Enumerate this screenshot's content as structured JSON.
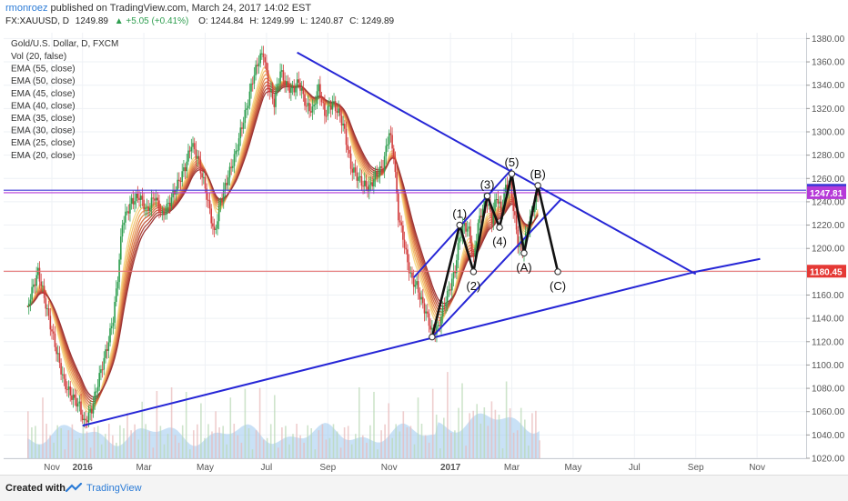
{
  "header": {
    "user": "rmonroez",
    "published_text": "published on TradingView.com, March 24, 2017 14:02 EST",
    "symbol": "FX:XAUUSD, D",
    "last": "1249.89",
    "change": "+5.05 (+0.41%)",
    "o": "O: 1244.84",
    "h": "H: 1249.99",
    "l": "L: 1240.87",
    "c": "C: 1249.89"
  },
  "legend": {
    "title": "Gold/U.S. Dollar, D, FXCM",
    "items": [
      "Vol (20, false)",
      "EMA (55, close)",
      "EMA (50, close)",
      "EMA (45, close)",
      "EMA (40, close)",
      "EMA (35, close)",
      "EMA (30, close)",
      "EMA (25, close)",
      "EMA (20, close)"
    ]
  },
  "price_tags": [
    {
      "label": "1249.89",
      "value": 1249.89,
      "color": "#3f3bd6"
    },
    {
      "label": "1247.81",
      "value": 1247.81,
      "color": "#b63ad8"
    },
    {
      "label": "1180.45",
      "value": 1180.45,
      "color": "#e53935"
    }
  ],
  "footer": {
    "created": "Created with",
    "brand": "TradingView"
  },
  "chart_data": {
    "type": "line",
    "title": "Gold/U.S. Dollar, D, FXCM",
    "y_range": [
      1020,
      1385
    ],
    "y_ticks": [
      1020,
      1040,
      1060,
      1080,
      1100,
      1120,
      1140,
      1160,
      1180,
      1200,
      1220,
      1240,
      1260,
      1280,
      1300,
      1320,
      1340,
      1360,
      1380
    ],
    "y_tick_labels": [
      "1020.00",
      "1040.00",
      "1060.00",
      "1080.00",
      "1100.00",
      "1120.00",
      "1140.00",
      "1160.00",
      "1180.00",
      "1200.00",
      "1220.00",
      "1240.00",
      "1260.00",
      "1280.00",
      "1300.00",
      "1320.00",
      "1340.00",
      "1360.00",
      "1380.00"
    ],
    "x_axis_labels": [
      {
        "label": "Nov",
        "month_index": 0
      },
      {
        "label": "2016",
        "month_index": 1
      },
      {
        "label": "Mar",
        "month_index": 3
      },
      {
        "label": "May",
        "month_index": 5
      },
      {
        "label": "Jul",
        "month_index": 7
      },
      {
        "label": "Sep",
        "month_index": 9
      },
      {
        "label": "Nov",
        "month_index": 11
      },
      {
        "label": "2017",
        "month_index": 13
      },
      {
        "label": "Mar",
        "month_index": 15
      },
      {
        "label": "May",
        "month_index": 17
      },
      {
        "label": "Jul",
        "month_index": 19
      },
      {
        "label": "Sep",
        "month_index": 21
      },
      {
        "label": "Nov",
        "month_index": 23
      }
    ],
    "price_series": {
      "name": "XAUUSD close",
      "points": [
        [
          -0.8,
          1150
        ],
        [
          -0.6,
          1168
        ],
        [
          -0.45,
          1180
        ],
        [
          -0.3,
          1164
        ],
        [
          -0.1,
          1140
        ],
        [
          0.15,
          1112
        ],
        [
          0.4,
          1085
        ],
        [
          0.6,
          1075
        ],
        [
          0.9,
          1065
        ],
        [
          1.05,
          1050
        ],
        [
          1.3,
          1062
        ],
        [
          1.55,
          1090
        ],
        [
          1.8,
          1115
        ],
        [
          2.0,
          1140
        ],
        [
          2.15,
          1175
        ],
        [
          2.3,
          1222
        ],
        [
          2.6,
          1240
        ],
        [
          2.85,
          1245
        ],
        [
          3.1,
          1232
        ],
        [
          3.35,
          1245
        ],
        [
          3.6,
          1228
        ],
        [
          3.85,
          1240
        ],
        [
          4.1,
          1255
        ],
        [
          4.35,
          1270
        ],
        [
          4.55,
          1290
        ],
        [
          4.75,
          1278
        ],
        [
          5.0,
          1252
        ],
        [
          5.15,
          1232
        ],
        [
          5.3,
          1212
        ],
        [
          5.5,
          1240
        ],
        [
          5.75,
          1262
        ],
        [
          6.0,
          1282
        ],
        [
          6.15,
          1300
        ],
        [
          6.35,
          1320
        ],
        [
          6.55,
          1345
        ],
        [
          6.75,
          1362
        ],
        [
          6.9,
          1368
        ],
        [
          7.05,
          1340
        ],
        [
          7.25,
          1325
        ],
        [
          7.45,
          1352
        ],
        [
          7.65,
          1340
        ],
        [
          7.85,
          1335
        ],
        [
          8.05,
          1343
        ],
        [
          8.3,
          1322
        ],
        [
          8.5,
          1318
        ],
        [
          8.7,
          1338
        ],
        [
          8.9,
          1315
        ],
        [
          9.15,
          1325
        ],
        [
          9.4,
          1314
        ],
        [
          9.55,
          1300
        ],
        [
          9.75,
          1270
        ],
        [
          9.95,
          1262
        ],
        [
          10.15,
          1255
        ],
        [
          10.35,
          1252
        ],
        [
          10.55,
          1262
        ],
        [
          10.8,
          1270
        ],
        [
          11.0,
          1300
        ],
        [
          11.15,
          1280
        ],
        [
          11.3,
          1228
        ],
        [
          11.45,
          1210
        ],
        [
          11.6,
          1188
        ],
        [
          11.75,
          1172
        ],
        [
          11.9,
          1168
        ],
        [
          12.05,
          1155
        ],
        [
          12.2,
          1145
        ],
        [
          12.4,
          1128
        ],
        [
          12.6,
          1132
        ],
        [
          12.8,
          1152
        ],
        [
          13.0,
          1168
        ],
        [
          13.15,
          1182
        ],
        [
          13.3,
          1210
        ],
        [
          13.45,
          1220
        ],
        [
          13.6,
          1215
        ],
        [
          13.75,
          1190
        ],
        [
          13.9,
          1220
        ],
        [
          14.05,
          1235
        ],
        [
          14.2,
          1240
        ],
        [
          14.35,
          1225
        ],
        [
          14.5,
          1245
        ],
        [
          14.65,
          1232
        ],
        [
          14.8,
          1252
        ],
        [
          14.95,
          1256
        ],
        [
          15.05,
          1235
        ],
        [
          15.2,
          1205
        ],
        [
          15.35,
          1198
        ],
        [
          15.5,
          1215
        ],
        [
          15.65,
          1230
        ],
        [
          15.8,
          1245
        ],
        [
          15.9,
          1249.89
        ]
      ]
    },
    "ema_series": [
      {
        "name": "EMA (20, close)",
        "color": "#f6d98a"
      },
      {
        "name": "EMA (25, close)",
        "color": "#f2c070"
      },
      {
        "name": "EMA (30, close)",
        "color": "#eda45e"
      },
      {
        "name": "EMA (35, close)",
        "color": "#e2884f"
      },
      {
        "name": "EMA (40, close)",
        "color": "#d47045"
      },
      {
        "name": "EMA (45, close)",
        "color": "#c45a3f"
      },
      {
        "name": "EMA (50, close)",
        "color": "#b2473a"
      },
      {
        "name": "EMA (55, close)",
        "color": "#9e3636"
      }
    ],
    "horizontal_lines": [
      {
        "value": 1249.89,
        "color": "#3f3bd6"
      },
      {
        "value": 1247.81,
        "color": "#b63ad8"
      },
      {
        "value": 1180.45,
        "color": "#e57373"
      }
    ],
    "trendlines": [
      {
        "from": [
          1.0,
          1048
        ],
        "to": [
          21.0,
          1180
        ]
      },
      {
        "from": [
          21.0,
          1180
        ],
        "to": [
          23.1,
          1191
        ]
      },
      {
        "from": [
          8.0,
          1368
        ],
        "to": [
          21.0,
          1178
        ]
      },
      {
        "from": [
          11.8,
          1175
        ],
        "to": [
          15.0,
          1268
        ]
      },
      {
        "from": [
          12.4,
          1124
        ],
        "to": [
          16.6,
          1242
        ]
      }
    ],
    "elliott_wave": [
      {
        "label": "",
        "x": 12.4,
        "y": 1124
      },
      {
        "label": "(1)",
        "x": 13.3,
        "y": 1220
      },
      {
        "label": "(2)",
        "x": 13.75,
        "y": 1180
      },
      {
        "label": "(3)",
        "x": 14.2,
        "y": 1245
      },
      {
        "label": "(4)",
        "x": 14.6,
        "y": 1218
      },
      {
        "label": "(5)",
        "x": 15.0,
        "y": 1264
      },
      {
        "label": "(A)",
        "x": 15.4,
        "y": 1196
      },
      {
        "label": "(B)",
        "x": 15.85,
        "y": 1254
      },
      {
        "label": "(C)",
        "x": 16.5,
        "y": 1180
      }
    ],
    "volume_note": "Vol (20, false)"
  }
}
